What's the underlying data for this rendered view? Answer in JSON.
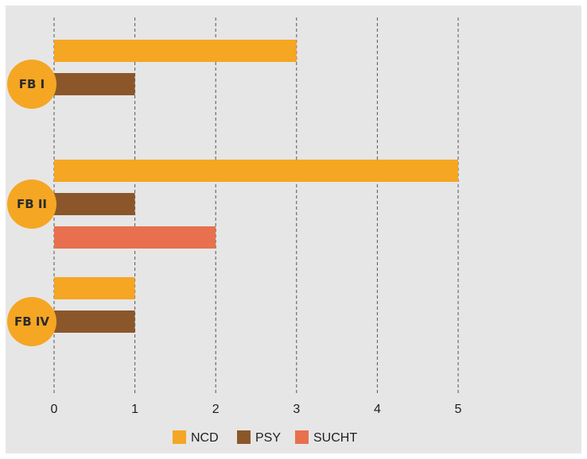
{
  "chart_data": {
    "type": "bar",
    "orientation": "horizontal",
    "categories": [
      "FB I",
      "FB II",
      "FB IV"
    ],
    "series": [
      {
        "name": "NCD",
        "color": "#F5A623",
        "values": [
          3,
          5,
          1
        ]
      },
      {
        "name": "PSY",
        "color": "#8B572A",
        "values": [
          1,
          1,
          1
        ]
      },
      {
        "name": "SUCHT",
        "color": "#E8704E",
        "values": [
          null,
          2,
          null
        ]
      }
    ],
    "xlim": [
      0,
      5
    ],
    "xticks": [
      "0",
      "1",
      "2",
      "3",
      "4",
      "5"
    ],
    "grid": "dashed vertical",
    "legend": "bottom",
    "category_badge_color": "#F5A623",
    "background": "#E6E6E6"
  }
}
